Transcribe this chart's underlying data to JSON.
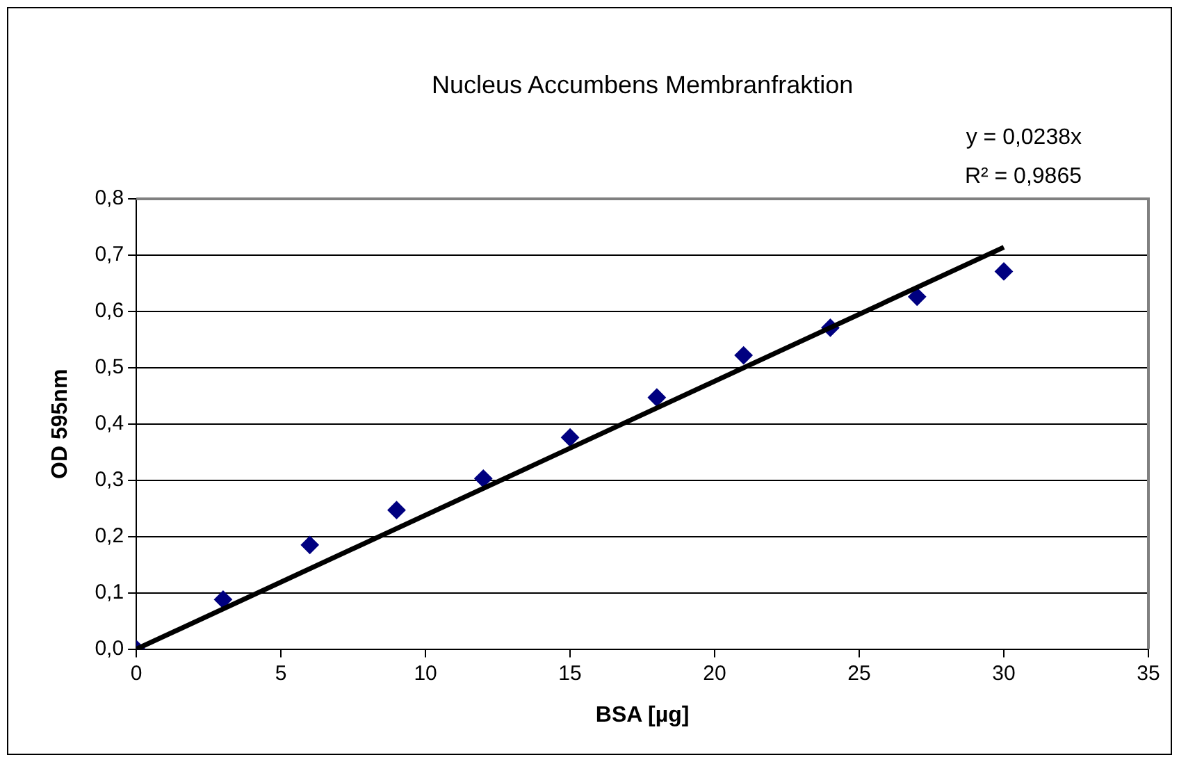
{
  "chart_data": {
    "type": "scatter",
    "title": "Nucleus Accumbens Membranfraktion",
    "xlabel": "BSA [µg]",
    "ylabel": "OD 595nm",
    "xlim": [
      0,
      35
    ],
    "xticks": [
      0,
      5,
      10,
      15,
      20,
      25,
      30,
      35
    ],
    "ylim": [
      0,
      0.8
    ],
    "yticks": [
      {
        "value": 0,
        "label": "0,0"
      },
      {
        "value": 0.1,
        "label": "0,1"
      },
      {
        "value": 0.2,
        "label": "0,2"
      },
      {
        "value": 0.3,
        "label": "0,3"
      },
      {
        "value": 0.4,
        "label": "0,4"
      },
      {
        "value": 0.5,
        "label": "0,5"
      },
      {
        "value": 0.6,
        "label": "0,6"
      },
      {
        "value": 0.7,
        "label": "0,7"
      },
      {
        "value": 0.8,
        "label": "0,8"
      }
    ],
    "grid": "y",
    "series": [
      {
        "color": "#000080",
        "marker": "diamond",
        "x": [
          0,
          3,
          6,
          9,
          12,
          15,
          18,
          21,
          24,
          27,
          30
        ],
        "values": [
          0,
          0.088,
          0.185,
          0.247,
          0.303,
          0.376,
          0.447,
          0.522,
          0.571,
          0.626,
          0.671
        ]
      },
      {
        "type": "line",
        "color": "#000000",
        "marker": "none",
        "x": [
          0,
          30
        ],
        "values": [
          0,
          0.714
        ]
      }
    ],
    "annotations": [
      "y = 0,0238x",
      "R² = 0,9865"
    ]
  }
}
